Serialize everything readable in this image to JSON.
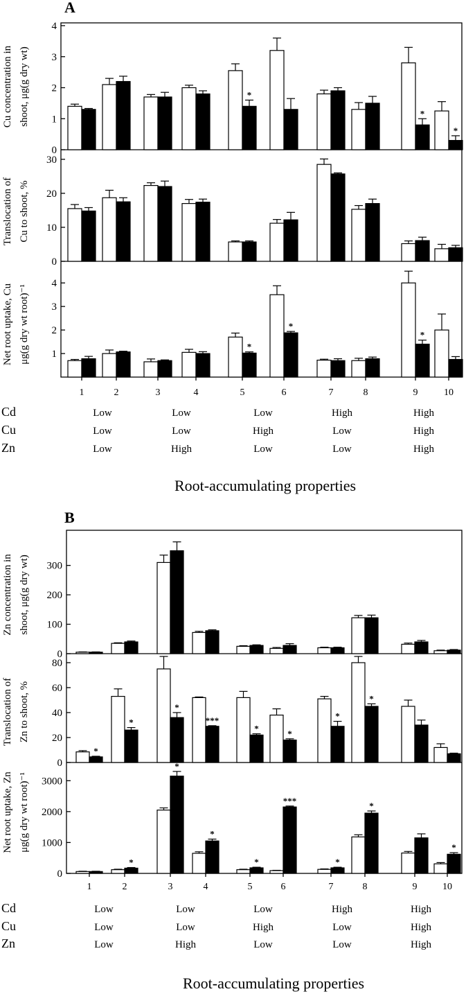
{
  "chart_data": [
    {
      "panel": "A",
      "type": "bar",
      "categories": [
        "1",
        "2",
        "3",
        "4",
        "5",
        "6",
        "7",
        "8",
        "9",
        "10"
      ],
      "row_labels": [
        "Cd",
        "Cu",
        "Zn"
      ],
      "properties": [
        [
          "Low",
          "Low",
          "Low"
        ],
        [
          "Low",
          "Low",
          "High"
        ],
        [
          "Low",
          "High",
          "Low"
        ],
        [
          "High",
          "Low",
          "Low"
        ],
        [
          "High",
          "High",
          "High"
        ]
      ],
      "xlabel": "Root-accumulating properties",
      "subplots": [
        {
          "ylabel": [
            "Cu concentration in",
            "shoot, μg(g dry wt)"
          ],
          "ylim": [
            0,
            4
          ],
          "yticks": [
            0,
            1,
            2,
            3,
            4
          ],
          "series": [
            {
              "style": "open",
              "values": [
                1.4,
                2.1,
                1.7,
                2.0,
                2.55,
                3.2,
                1.8,
                1.3,
                2.8,
                1.25
              ],
              "errors": [
                0.07,
                0.2,
                0.08,
                0.08,
                0.22,
                0.4,
                0.12,
                0.22,
                0.5,
                0.3
              ],
              "sig": [
                "",
                "",
                "",
                "",
                "",
                "",
                "",
                "",
                "",
                ""
              ]
            },
            {
              "style": "filled",
              "values": [
                1.3,
                2.2,
                1.7,
                1.8,
                1.4,
                1.3,
                1.9,
                1.5,
                0.8,
                0.3
              ],
              "errors": [
                0.03,
                0.17,
                0.15,
                0.1,
                0.2,
                0.35,
                0.1,
                0.22,
                0.2,
                0.15
              ],
              "sig": [
                "",
                "",
                "",
                "",
                "*",
                "",
                "",
                "",
                "*",
                "*"
              ]
            }
          ]
        },
        {
          "ylabel": [
            "Translocation of",
            "Cu to shoot, %"
          ],
          "ylim": [
            0,
            32
          ],
          "yticks": [
            0,
            10,
            20,
            30
          ],
          "series": [
            {
              "style": "open",
              "values": [
                15.5,
                18.7,
                22.3,
                17.0,
                5.7,
                11.2,
                28.5,
                15.3,
                5.2,
                3.7
              ],
              "errors": [
                1.2,
                2.2,
                0.8,
                1.2,
                0.3,
                1.1,
                1.6,
                1.1,
                0.8,
                1.3
              ],
              "sig": [
                "",
                "",
                "",
                "",
                "",
                "",
                "",
                "",
                "",
                ""
              ]
            },
            {
              "style": "filled",
              "values": [
                14.8,
                17.5,
                22.0,
                17.4,
                5.7,
                12.2,
                25.7,
                17.0,
                6.1,
                4.0
              ],
              "errors": [
                1.0,
                1.2,
                1.6,
                0.9,
                0.3,
                2.2,
                0.3,
                1.3,
                1.0,
                0.7
              ],
              "sig": [
                "",
                "",
                "",
                "",
                "",
                "",
                "",
                "",
                "",
                ""
              ]
            }
          ]
        },
        {
          "ylabel": [
            "Net root uptake, Cu",
            "μg(g dry wt root)⁻¹"
          ],
          "ylim": [
            0,
            4.8
          ],
          "yticks": [
            1,
            2,
            3,
            4
          ],
          "series": [
            {
              "style": "open",
              "values": [
                0.7,
                1.0,
                0.65,
                1.05,
                1.7,
                3.5,
                0.72,
                0.7,
                4.0,
                2.0
              ],
              "errors": [
                0.05,
                0.15,
                0.12,
                0.13,
                0.17,
                0.38,
                0.04,
                0.1,
                0.5,
                0.68
              ],
              "sig": [
                "",
                "",
                "",
                "",
                "",
                "",
                "",
                "",
                "",
                ""
              ]
            },
            {
              "style": "filled",
              "values": [
                0.78,
                1.07,
                0.7,
                1.0,
                1.02,
                1.88,
                0.7,
                0.78,
                1.4,
                0.75
              ],
              "errors": [
                0.1,
                0.03,
                0.03,
                0.08,
                0.05,
                0.06,
                0.08,
                0.07,
                0.17,
                0.12
              ],
              "sig": [
                "",
                "",
                "",
                "",
                "*",
                "*",
                "",
                "",
                "*",
                ""
              ]
            }
          ]
        }
      ]
    },
    {
      "panel": "B",
      "type": "bar",
      "categories": [
        "1",
        "2",
        "3",
        "4",
        "5",
        "6",
        "7",
        "8",
        "9",
        "10"
      ],
      "row_labels": [
        "Cd",
        "Cu",
        "Zn"
      ],
      "properties": [
        [
          "Low",
          "Low",
          "Low"
        ],
        [
          "Low",
          "Low",
          "High"
        ],
        [
          "Low",
          "High",
          "Low"
        ],
        [
          "High",
          "Low",
          "Low"
        ],
        [
          "High",
          "High",
          "High"
        ]
      ],
      "xlabel": "Root-accumulating properties",
      "subplots": [
        {
          "ylabel": [
            "Zn concentration in",
            "shoot, μg(g dry wt)"
          ],
          "ylim": [
            0,
            410
          ],
          "yticks": [
            0,
            100,
            200,
            300
          ],
          "series": [
            {
              "style": "open",
              "values": [
                5,
                35,
                310,
                72,
                25,
                18,
                20,
                122,
                32,
                10
              ],
              "errors": [
                1,
                2,
                25,
                4,
                2,
                3,
                2,
                8,
                4,
                2
              ],
              "sig": [
                "",
                "",
                "",
                "",
                "",
                "",
                "",
                "",
                "",
                ""
              ]
            },
            {
              "style": "filled",
              "values": [
                5,
                40,
                350,
                78,
                28,
                28,
                20,
                122,
                40,
                12
              ],
              "errors": [
                1,
                3,
                30,
                3,
                2,
                6,
                2,
                9,
                5,
                2
              ],
              "sig": [
                "",
                "",
                "",
                "",
                "",
                "",
                "",
                "",
                "",
                ""
              ]
            }
          ]
        },
        {
          "ylabel": [
            "Translocation of",
            "Zn to shoot, %"
          ],
          "ylim": [
            0,
            85
          ],
          "yticks": [
            0,
            20,
            40,
            60,
            80
          ],
          "series": [
            {
              "style": "open",
              "values": [
                8.5,
                53,
                75,
                52,
                52,
                38,
                51,
                80,
                45,
                12
              ],
              "errors": [
                1,
                6,
                10,
                0.5,
                5,
                5,
                2,
                5,
                5,
                3
              ],
              "sig": [
                "",
                "",
                "",
                "",
                "",
                "",
                "",
                "",
                "",
                ""
              ]
            },
            {
              "style": "filled",
              "values": [
                4.5,
                26,
                36,
                29,
                22,
                18,
                29,
                45,
                30,
                7
              ],
              "errors": [
                0.5,
                2,
                4,
                0.5,
                1,
                1,
                4,
                2,
                4,
                0.5
              ],
              "sig": [
                "*",
                "*",
                "*",
                "***",
                "*",
                "*",
                "*",
                "*",
                "",
                ""
              ]
            }
          ]
        },
        {
          "ylabel": [
            "Net root uptake, Zn",
            "μg(g dry wt root)⁻¹"
          ],
          "ylim": [
            0,
            3500
          ],
          "yticks": [
            0,
            1000,
            2000,
            3000
          ],
          "series": [
            {
              "style": "open",
              "values": [
                60,
                120,
                2050,
                650,
                120,
                90,
                130,
                1180,
                660,
                310
              ],
              "errors": [
                10,
                15,
                70,
                50,
                15,
                10,
                15,
                70,
                50,
                40
              ],
              "sig": [
                "",
                "",
                "",
                "",
                "",
                "",
                "",
                "",
                "",
                ""
              ]
            },
            {
              "style": "filled",
              "values": [
                60,
                170,
                3150,
                1050,
                180,
                2150,
                180,
                1950,
                1150,
                620
              ],
              "errors": [
                10,
                20,
                150,
                60,
                20,
                30,
                20,
                70,
                130,
                50
              ],
              "sig": [
                "",
                "*",
                "*",
                "*",
                "*",
                "***",
                "*",
                "*",
                "",
                "*"
              ]
            }
          ]
        }
      ]
    }
  ]
}
